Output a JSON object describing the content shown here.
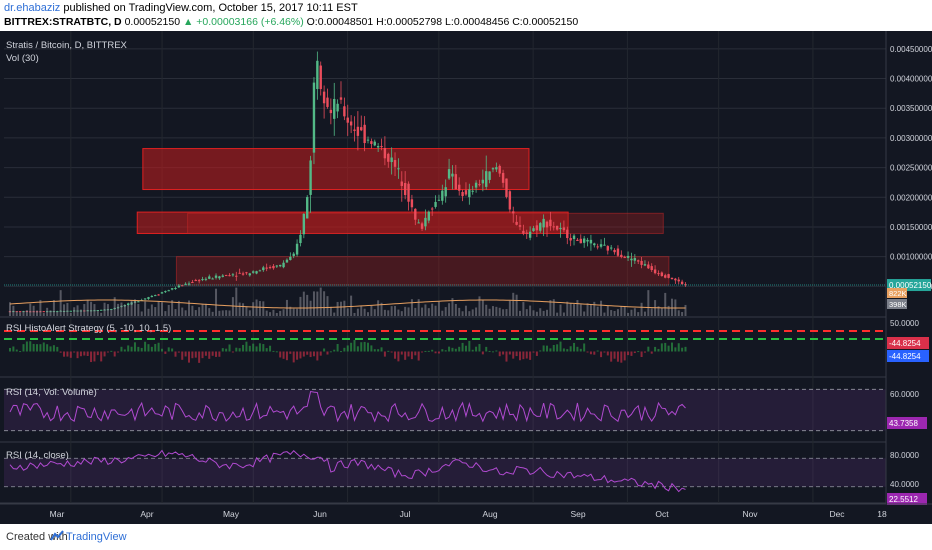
{
  "header": {
    "author": "dr.ehabaziz",
    "published_text": "published on TradingView.com, October 15, 2017 10:11 EST",
    "symbol": "BITTREX:STRATBTC, D",
    "last": "0.00052150",
    "change": "+0.00003166 (+6.46%)",
    "ohlc": {
      "O": "O:",
      "O_val": "0.00048501",
      "H": "H:",
      "H_val": "0.00052798",
      "L": "L:",
      "L_val": "0.00048456",
      "C": "C:",
      "C_val": "0.00052150"
    }
  },
  "footer": {
    "created_with": "Created with",
    "brand": "TradingView"
  },
  "chart_data": [
    {
      "type": "candlestick",
      "title": "Stratis / Bitcoin, D, BITTREX",
      "subtitle": "Vol (30)",
      "y_ticks": [
        "0.00450000",
        "0.00400000",
        "0.00350000",
        "0.00300000",
        "0.00250000",
        "0.00200000",
        "0.00150000",
        "0.00100000",
        "0.00050000"
      ],
      "ylim": [
        0.0,
        0.0048
      ],
      "last_price_label": "0.00052150",
      "volume_labels": [
        "822K",
        "398K"
      ],
      "x_ticks": [
        "Mar",
        "Apr",
        "May",
        "Jun",
        "Jul",
        "Aug",
        "Sep",
        "Oct",
        "Nov",
        "Dec",
        "18"
      ],
      "price_path": [
        [
          0,
          8e-05
        ],
        [
          10,
          8e-05
        ],
        [
          20,
          9e-05
        ],
        [
          26,
          0.0001
        ],
        [
          30,
          0.00012
        ],
        [
          35,
          0.0002
        ],
        [
          40,
          0.0003
        ],
        [
          45,
          0.0004
        ],
        [
          50,
          0.0005
        ],
        [
          55,
          0.0006
        ],
        [
          60,
          0.00065
        ],
        [
          65,
          0.0007
        ],
        [
          70,
          0.00072
        ],
        [
          75,
          0.0008
        ],
        [
          80,
          0.00085
        ],
        [
          82,
          0.00095
        ],
        [
          84,
          0.001
        ],
        [
          86,
          0.0014
        ],
        [
          88,
          0.002
        ],
        [
          89,
          0.0027
        ],
        [
          90,
          0.0039
        ],
        [
          91,
          0.0044
        ],
        [
          92,
          0.004
        ],
        [
          93,
          0.0038
        ],
        [
          95,
          0.0034
        ],
        [
          97,
          0.0036
        ],
        [
          100,
          0.0033
        ],
        [
          103,
          0.0031
        ],
        [
          106,
          0.003
        ],
        [
          110,
          0.0028
        ],
        [
          113,
          0.0026
        ],
        [
          116,
          0.0023
        ],
        [
          118,
          0.002
        ],
        [
          120,
          0.0016
        ],
        [
          122,
          0.0015
        ],
        [
          124,
          0.0018
        ],
        [
          126,
          0.0019
        ],
        [
          128,
          0.0021
        ],
        [
          130,
          0.0024
        ],
        [
          132,
          0.0022
        ],
        [
          135,
          0.002
        ],
        [
          138,
          0.0022
        ],
        [
          140,
          0.0023
        ],
        [
          142,
          0.0024
        ],
        [
          144,
          0.0025
        ],
        [
          146,
          0.0023
        ],
        [
          148,
          0.0018
        ],
        [
          150,
          0.0015
        ],
        [
          153,
          0.0014
        ],
        [
          156,
          0.0015
        ],
        [
          158,
          0.0016
        ],
        [
          161,
          0.0015
        ],
        [
          164,
          0.0014
        ],
        [
          167,
          0.0013
        ],
        [
          170,
          0.00125
        ],
        [
          173,
          0.0012
        ],
        [
          176,
          0.00115
        ],
        [
          179,
          0.0011
        ],
        [
          182,
          0.001
        ],
        [
          185,
          0.00095
        ],
        [
          188,
          0.00085
        ],
        [
          191,
          0.00075
        ],
        [
          194,
          0.00068
        ],
        [
          197,
          0.0006
        ],
        [
          200,
          0.00052
        ]
      ],
      "zones": [
        {
          "from_day": 29,
          "to_day": 167,
          "y_low": 0.00213,
          "y_high": 0.00282
        },
        {
          "from_day": 27,
          "to_day": 181,
          "y_low": 0.00139,
          "y_high": 0.00175
        },
        {
          "from_day": 45,
          "to_day": 215,
          "y_low": 0.00139,
          "y_high": 0.00173
        },
        {
          "from_day": 41,
          "to_day": 217,
          "y_low": 0.00052,
          "y_high": 0.001
        }
      ]
    },
    {
      "type": "bar",
      "title": "RSI HistoAlert Strategy (5, -10, 10, 1.5)",
      "y_ticks": [
        "50.0000"
      ],
      "value_labels": [
        "-44.8254",
        "-44.8254"
      ],
      "colors": {
        "positive": "#2ea84a",
        "negative": "#d9304a",
        "upper_line": "#ff2d2d",
        "lower_line": "#28c040"
      }
    },
    {
      "type": "line",
      "title": "RSI (14, Vol: Volume)",
      "y_ticks": [
        "60.0000"
      ],
      "last_label": "43.7358",
      "ylim": [
        20,
        80
      ],
      "color": "#b04ad0"
    },
    {
      "type": "line",
      "title": "RSI (14, close)",
      "y_ticks": [
        "80.0000",
        "40.0000"
      ],
      "last_label": "22.5512",
      "ylim": [
        10,
        90
      ],
      "color": "#b04ad0"
    }
  ]
}
